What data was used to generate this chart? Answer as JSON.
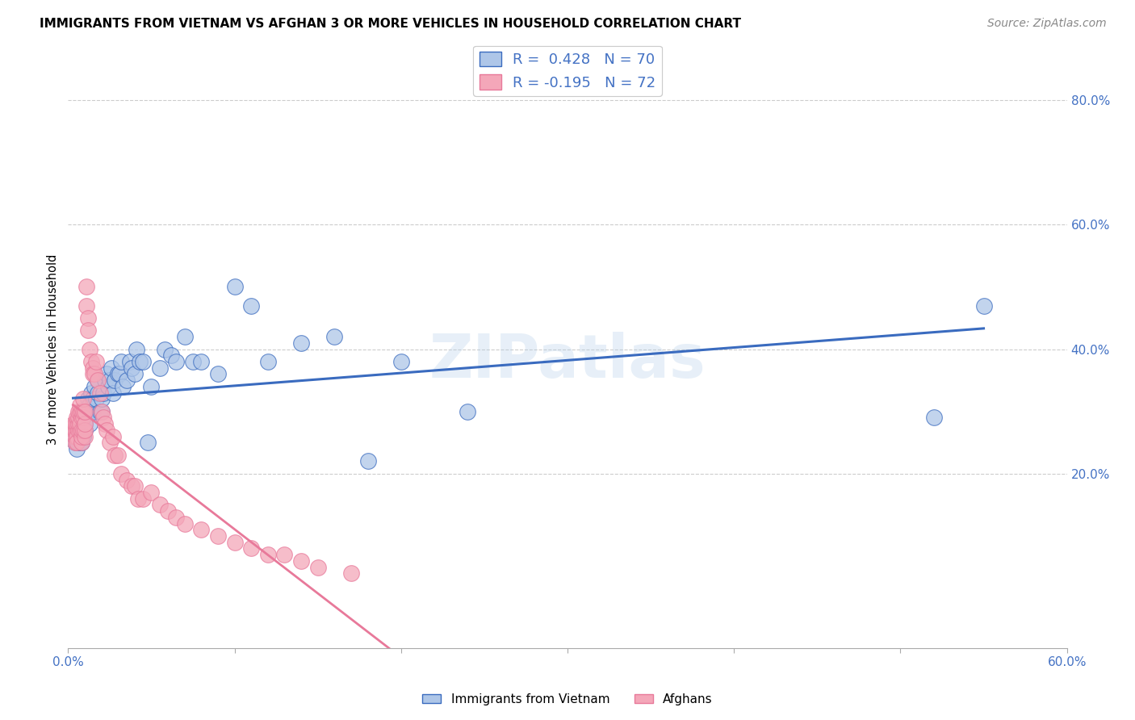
{
  "title": "IMMIGRANTS FROM VIETNAM VS AFGHAN 3 OR MORE VEHICLES IN HOUSEHOLD CORRELATION CHART",
  "source": "Source: ZipAtlas.com",
  "ylabel": "3 or more Vehicles in Household",
  "xlim": [
    0.0,
    0.6
  ],
  "ylim": [
    -0.08,
    0.88
  ],
  "yticks_right": [
    0.2,
    0.4,
    0.6,
    0.8
  ],
  "ytick_right_labels": [
    "20.0%",
    "40.0%",
    "60.0%",
    "80.0%"
  ],
  "xtick_vals": [
    0.0,
    0.1,
    0.2,
    0.3,
    0.4,
    0.5,
    0.6
  ],
  "xtick_labels": [
    "0.0%",
    "",
    "",
    "",
    "",
    "",
    "60.0%"
  ],
  "vietnam_R": 0.428,
  "vietnam_N": 70,
  "afghan_R": -0.195,
  "afghan_N": 72,
  "vietnam_color": "#aec6e8",
  "afghan_color": "#f4a7b9",
  "vietnam_line_color": "#3a6bbf",
  "afghan_line_color": "#e8799a",
  "legend_label_vietnam": "Immigrants from Vietnam",
  "legend_label_afghan": "Afghans",
  "background_color": "#ffffff",
  "watermark": "ZIPatlas",
  "vietnam_x": [
    0.003,
    0.004,
    0.005,
    0.005,
    0.006,
    0.006,
    0.007,
    0.007,
    0.008,
    0.008,
    0.008,
    0.009,
    0.009,
    0.009,
    0.01,
    0.01,
    0.01,
    0.012,
    0.012,
    0.013,
    0.013,
    0.014,
    0.015,
    0.015,
    0.016,
    0.017,
    0.018,
    0.018,
    0.019,
    0.02,
    0.02,
    0.021,
    0.022,
    0.023,
    0.024,
    0.025,
    0.026,
    0.027,
    0.028,
    0.03,
    0.031,
    0.032,
    0.033,
    0.035,
    0.037,
    0.038,
    0.04,
    0.041,
    0.043,
    0.045,
    0.048,
    0.05,
    0.055,
    0.058,
    0.062,
    0.065,
    0.07,
    0.075,
    0.08,
    0.09,
    0.1,
    0.11,
    0.12,
    0.14,
    0.16,
    0.18,
    0.2,
    0.24,
    0.52,
    0.55
  ],
  "vietnam_y": [
    0.27,
    0.25,
    0.26,
    0.24,
    0.25,
    0.27,
    0.26,
    0.25,
    0.26,
    0.27,
    0.25,
    0.28,
    0.26,
    0.27,
    0.28,
    0.3,
    0.27,
    0.3,
    0.32,
    0.28,
    0.31,
    0.33,
    0.3,
    0.32,
    0.34,
    0.32,
    0.33,
    0.35,
    0.3,
    0.3,
    0.32,
    0.33,
    0.35,
    0.36,
    0.34,
    0.35,
    0.37,
    0.33,
    0.35,
    0.36,
    0.36,
    0.38,
    0.34,
    0.35,
    0.38,
    0.37,
    0.36,
    0.4,
    0.38,
    0.38,
    0.25,
    0.34,
    0.37,
    0.4,
    0.39,
    0.38,
    0.42,
    0.38,
    0.38,
    0.36,
    0.5,
    0.47,
    0.38,
    0.41,
    0.42,
    0.22,
    0.38,
    0.3,
    0.29,
    0.47
  ],
  "afghan_x": [
    0.003,
    0.003,
    0.004,
    0.004,
    0.004,
    0.004,
    0.005,
    0.005,
    0.005,
    0.005,
    0.005,
    0.006,
    0.006,
    0.006,
    0.006,
    0.007,
    0.007,
    0.007,
    0.007,
    0.008,
    0.008,
    0.008,
    0.008,
    0.008,
    0.009,
    0.009,
    0.009,
    0.009,
    0.01,
    0.01,
    0.01,
    0.01,
    0.011,
    0.011,
    0.012,
    0.012,
    0.013,
    0.014,
    0.015,
    0.015,
    0.016,
    0.017,
    0.018,
    0.019,
    0.02,
    0.021,
    0.022,
    0.023,
    0.025,
    0.027,
    0.028,
    0.03,
    0.032,
    0.035,
    0.038,
    0.04,
    0.042,
    0.045,
    0.05,
    0.055,
    0.06,
    0.065,
    0.07,
    0.08,
    0.09,
    0.1,
    0.11,
    0.12,
    0.13,
    0.14,
    0.15,
    0.17
  ],
  "afghan_y": [
    0.27,
    0.28,
    0.25,
    0.26,
    0.27,
    0.28,
    0.27,
    0.26,
    0.25,
    0.28,
    0.29,
    0.27,
    0.28,
    0.29,
    0.3,
    0.27,
    0.28,
    0.3,
    0.31,
    0.25,
    0.26,
    0.27,
    0.29,
    0.3,
    0.27,
    0.29,
    0.3,
    0.32,
    0.26,
    0.27,
    0.28,
    0.3,
    0.5,
    0.47,
    0.45,
    0.43,
    0.4,
    0.38,
    0.37,
    0.36,
    0.36,
    0.38,
    0.35,
    0.33,
    0.3,
    0.29,
    0.28,
    0.27,
    0.25,
    0.26,
    0.23,
    0.23,
    0.2,
    0.19,
    0.18,
    0.18,
    0.16,
    0.16,
    0.17,
    0.15,
    0.14,
    0.13,
    0.12,
    0.11,
    0.1,
    0.09,
    0.08,
    0.07,
    0.07,
    0.06,
    0.05,
    0.04
  ]
}
